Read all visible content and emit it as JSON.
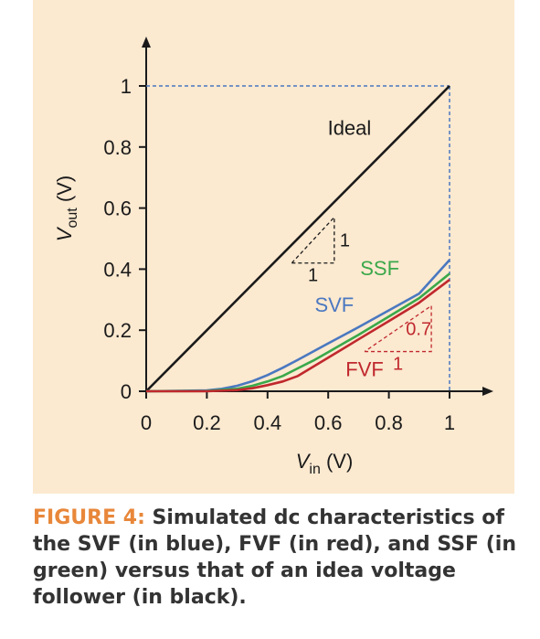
{
  "chart_data": {
    "type": "line",
    "xlabel": {
      "main": "V",
      "sub": "in",
      "unit": " (V)"
    },
    "ylabel": {
      "main": "V",
      "sub": "out",
      "unit": " (V)"
    },
    "xlim": [
      0,
      1
    ],
    "ylim": [
      0,
      1
    ],
    "xticks": [
      0,
      0.2,
      0.4,
      0.6,
      0.8,
      1
    ],
    "xtick_labels": [
      "0",
      "0.2",
      "0.4",
      "0.6",
      "0.8",
      "1"
    ],
    "yticks": [
      0,
      0.2,
      0.4,
      0.6,
      0.8,
      1
    ],
    "ytick_labels": [
      "0",
      "0.2",
      "0.4",
      "0.6",
      "0.8",
      "1"
    ],
    "grid": false,
    "series": [
      {
        "name": "Ideal",
        "color": "#1a1a1a",
        "x": [
          0,
          1
        ],
        "y": [
          0,
          1
        ]
      },
      {
        "name": "SVF",
        "color": "#4a78c0",
        "x": [
          0,
          0.2,
          0.25,
          0.3,
          0.35,
          0.4,
          0.45,
          0.5,
          0.55,
          0.6,
          0.7,
          0.8,
          0.9,
          1.0
        ],
        "y": [
          0,
          0.003,
          0.008,
          0.018,
          0.033,
          0.053,
          0.077,
          0.103,
          0.13,
          0.157,
          0.21,
          0.265,
          0.32,
          0.43
        ]
      },
      {
        "name": "SSF",
        "color": "#3aa84a",
        "x": [
          0,
          0.2,
          0.3,
          0.35,
          0.4,
          0.45,
          0.5,
          0.55,
          0.6,
          0.7,
          0.8,
          0.9,
          1.0
        ],
        "y": [
          0,
          0.001,
          0.008,
          0.018,
          0.032,
          0.05,
          0.075,
          0.1,
          0.128,
          0.185,
          0.245,
          0.305,
          0.385
        ]
      },
      {
        "name": "FVF",
        "color": "#c0282d",
        "x": [
          0,
          0.2,
          0.3,
          0.35,
          0.4,
          0.45,
          0.5,
          0.55,
          0.6,
          0.7,
          0.8,
          0.9,
          1.0
        ],
        "y": [
          0,
          0.0,
          0.004,
          0.01,
          0.02,
          0.032,
          0.05,
          0.08,
          0.11,
          0.17,
          0.23,
          0.29,
          0.365
        ]
      }
    ],
    "reference_lines": {
      "x": 1,
      "y": 1,
      "style": "dashed",
      "color": "#4a78c0"
    },
    "annotations": [
      {
        "text": "Ideal",
        "x": 0.67,
        "y": 0.84,
        "color": "#1a1a1a"
      },
      {
        "text": "SSF",
        "x": 0.77,
        "y": 0.38,
        "color": "#3aa84a"
      },
      {
        "text": "SVF",
        "x": 0.62,
        "y": 0.26,
        "color": "#4a78c0"
      },
      {
        "text": "FVF",
        "x": 0.72,
        "y": 0.05,
        "color": "#c0282d"
      }
    ],
    "slope_triangles": [
      {
        "color": "#1a1a1a",
        "x0": 0.48,
        "y0": 0.42,
        "x1": 0.62,
        "y1": 0.57,
        "run_label": "1",
        "rise_label": "1"
      },
      {
        "color": "#c0282d",
        "x0": 0.72,
        "y0": 0.13,
        "x1": 0.94,
        "y1": 0.28,
        "run_label": "1",
        "rise_label": "0.7"
      }
    ]
  },
  "caption": {
    "label": "FIGURE 4:",
    "text": " Simulated dc characteristics of the SVF (in blue), FVF (in red), and SSF (in green) versus that of an idea voltage follower (in black)."
  },
  "colors": {
    "panel_bg": "#fbe9d0",
    "caption_label": "#e8873a",
    "caption_text": "#333333",
    "axis": "#1a1a1a"
  }
}
